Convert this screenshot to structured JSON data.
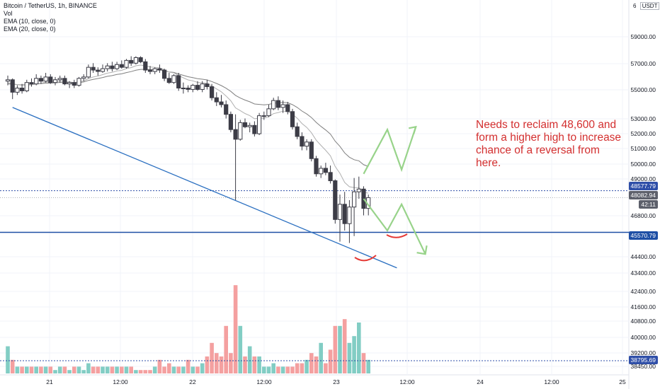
{
  "header": {
    "title": "Bitcoin / TetherUS, 1h, BINANCE",
    "indicators": [
      "Vol",
      "EMA (10, close, 0)",
      "EMA (20, close, 0)"
    ]
  },
  "price_scale": {
    "currency_box": "USDT",
    "top_label": "6",
    "tags": {
      "line1": "48577.79",
      "current": "48082.94",
      "countdown": "42:11",
      "support": "45570.79",
      "volume_line": "38795.69"
    }
  },
  "annotation": {
    "text": "Needs to reclaim 48,600 and form a higher high to increase chance of a reversal from here."
  },
  "colors": {
    "up_volume": "#82cdc4",
    "down_volume": "#f4a0a0",
    "candle": "#3c3c46",
    "trendline": "#2a6fc0",
    "support": "#1e4fa5",
    "dotted": "#2f4fa8",
    "ema10": "#b0b0b0",
    "ema20": "#808080",
    "path": "#98d38a",
    "smile": "#e53935",
    "note": "#d32f2f"
  },
  "chart_data": {
    "type": "candlestick",
    "title": "Bitcoin / TetherUS, 1h, BINANCE",
    "y_ticks": [
      59000,
      57000,
      55000,
      53000,
      52000,
      51000,
      50000,
      49000,
      46800,
      44400,
      43400,
      42400,
      41600,
      40800,
      40000,
      39200,
      38450
    ],
    "x_ticks": [
      "21",
      "12:00",
      "22",
      "12:00",
      "23",
      "12:00",
      "24",
      "12:00",
      "25"
    ],
    "candles": [
      {
        "o": 56500,
        "h": 56900,
        "l": 56200,
        "c": 56600
      },
      {
        "o": 56600,
        "h": 56700,
        "l": 55200,
        "c": 55700
      },
      {
        "o": 55700,
        "h": 56200,
        "l": 55500,
        "c": 56000
      },
      {
        "o": 56000,
        "h": 56300,
        "l": 55600,
        "c": 55800
      },
      {
        "o": 55800,
        "h": 56600,
        "l": 55700,
        "c": 56400
      },
      {
        "o": 56400,
        "h": 56700,
        "l": 56100,
        "c": 56300
      },
      {
        "o": 56300,
        "h": 57000,
        "l": 56200,
        "c": 56700
      },
      {
        "o": 56700,
        "h": 56900,
        "l": 56300,
        "c": 56500
      },
      {
        "o": 56500,
        "h": 57100,
        "l": 56400,
        "c": 56800
      },
      {
        "o": 56800,
        "h": 57000,
        "l": 56300,
        "c": 56400
      },
      {
        "o": 56400,
        "h": 56800,
        "l": 56200,
        "c": 56600
      },
      {
        "o": 56600,
        "h": 56900,
        "l": 56400,
        "c": 56700
      },
      {
        "o": 56700,
        "h": 56900,
        "l": 56200,
        "c": 56300
      },
      {
        "o": 56300,
        "h": 56500,
        "l": 56000,
        "c": 56400
      },
      {
        "o": 56400,
        "h": 56600,
        "l": 56000,
        "c": 56200
      },
      {
        "o": 56200,
        "h": 56800,
        "l": 56100,
        "c": 56700
      },
      {
        "o": 56700,
        "h": 57000,
        "l": 56500,
        "c": 56800
      },
      {
        "o": 56800,
        "h": 57700,
        "l": 56700,
        "c": 57500
      },
      {
        "o": 57500,
        "h": 57800,
        "l": 57100,
        "c": 57300
      },
      {
        "o": 57300,
        "h": 57500,
        "l": 56900,
        "c": 57200
      },
      {
        "o": 57200,
        "h": 57700,
        "l": 57100,
        "c": 57400
      },
      {
        "o": 57400,
        "h": 57800,
        "l": 57200,
        "c": 57600
      },
      {
        "o": 57600,
        "h": 57900,
        "l": 57200,
        "c": 57400
      },
      {
        "o": 57400,
        "h": 57900,
        "l": 57300,
        "c": 57700
      },
      {
        "o": 57700,
        "h": 58000,
        "l": 57400,
        "c": 57500
      },
      {
        "o": 57500,
        "h": 58100,
        "l": 57400,
        "c": 58000
      },
      {
        "o": 58000,
        "h": 58300,
        "l": 57600,
        "c": 57800
      },
      {
        "o": 57800,
        "h": 58300,
        "l": 57700,
        "c": 58200
      },
      {
        "o": 58200,
        "h": 58300,
        "l": 57800,
        "c": 57900
      },
      {
        "o": 57900,
        "h": 58100,
        "l": 57100,
        "c": 57300
      },
      {
        "o": 57300,
        "h": 57600,
        "l": 57000,
        "c": 57200
      },
      {
        "o": 57200,
        "h": 57500,
        "l": 57000,
        "c": 57400
      },
      {
        "o": 57400,
        "h": 57700,
        "l": 57100,
        "c": 57300
      },
      {
        "o": 57300,
        "h": 57400,
        "l": 56500,
        "c": 56700
      },
      {
        "o": 56700,
        "h": 57100,
        "l": 56300,
        "c": 56400
      },
      {
        "o": 56400,
        "h": 57000,
        "l": 56300,
        "c": 56900
      },
      {
        "o": 56900,
        "h": 57100,
        "l": 55800,
        "c": 56000
      },
      {
        "o": 56000,
        "h": 56400,
        "l": 55600,
        "c": 56000
      },
      {
        "o": 56000,
        "h": 56200,
        "l": 55700,
        "c": 55900
      },
      {
        "o": 55900,
        "h": 56300,
        "l": 55700,
        "c": 56200
      },
      {
        "o": 56200,
        "h": 56500,
        "l": 55800,
        "c": 55900
      },
      {
        "o": 55900,
        "h": 56500,
        "l": 55700,
        "c": 56300
      },
      {
        "o": 56300,
        "h": 56600,
        "l": 55900,
        "c": 56100
      },
      {
        "o": 56100,
        "h": 56300,
        "l": 55100,
        "c": 55300
      },
      {
        "o": 55300,
        "h": 55700,
        "l": 54700,
        "c": 55000
      },
      {
        "o": 55000,
        "h": 55500,
        "l": 54600,
        "c": 54800
      },
      {
        "o": 54800,
        "h": 55100,
        "l": 53800,
        "c": 54100
      },
      {
        "o": 54100,
        "h": 54300,
        "l": 52800,
        "c": 53000
      },
      {
        "o": 53000,
        "h": 54100,
        "l": 47900,
        "c": 52300
      },
      {
        "o": 52300,
        "h": 53700,
        "l": 52200,
        "c": 53500
      },
      {
        "o": 53500,
        "h": 53800,
        "l": 53100,
        "c": 53200
      },
      {
        "o": 53200,
        "h": 53500,
        "l": 52800,
        "c": 53300
      },
      {
        "o": 53300,
        "h": 53600,
        "l": 52500,
        "c": 52700
      },
      {
        "o": 52700,
        "h": 54200,
        "l": 52600,
        "c": 54000
      },
      {
        "o": 54000,
        "h": 54300,
        "l": 53700,
        "c": 54000
      },
      {
        "o": 54000,
        "h": 54800,
        "l": 53900,
        "c": 54500
      },
      {
        "o": 54500,
        "h": 55300,
        "l": 54400,
        "c": 55100
      },
      {
        "o": 55100,
        "h": 55400,
        "l": 54400,
        "c": 54600
      },
      {
        "o": 54600,
        "h": 55100,
        "l": 54200,
        "c": 54800
      },
      {
        "o": 54800,
        "h": 55000,
        "l": 54100,
        "c": 54300
      },
      {
        "o": 54300,
        "h": 54500,
        "l": 53000,
        "c": 53200
      },
      {
        "o": 53200,
        "h": 53500,
        "l": 52300,
        "c": 52500
      },
      {
        "o": 52500,
        "h": 52800,
        "l": 51500,
        "c": 51800
      },
      {
        "o": 51800,
        "h": 52300,
        "l": 51500,
        "c": 52100
      },
      {
        "o": 52100,
        "h": 52300,
        "l": 50700,
        "c": 50900
      },
      {
        "o": 50900,
        "h": 51100,
        "l": 49600,
        "c": 49800
      },
      {
        "o": 49800,
        "h": 50400,
        "l": 49500,
        "c": 50200
      },
      {
        "o": 50200,
        "h": 50600,
        "l": 49700,
        "c": 49900
      },
      {
        "o": 49900,
        "h": 50400,
        "l": 49100,
        "c": 49300
      },
      {
        "o": 49300,
        "h": 49400,
        "l": 46200,
        "c": 46500
      },
      {
        "o": 46500,
        "h": 48300,
        "l": 44900,
        "c": 47600
      },
      {
        "o": 47600,
        "h": 48500,
        "l": 45700,
        "c": 46200
      },
      {
        "o": 46200,
        "h": 47900,
        "l": 44800,
        "c": 47400
      },
      {
        "o": 47400,
        "h": 49500,
        "l": 45300,
        "c": 48500
      },
      {
        "o": 48500,
        "h": 49600,
        "l": 48000,
        "c": 48700
      },
      {
        "o": 48700,
        "h": 48900,
        "l": 46800,
        "c": 47300
      },
      {
        "o": 47300,
        "h": 48300,
        "l": 46800,
        "c": 48080
      }
    ],
    "volume": {
      "unit_note": "relative bar heights",
      "values": [
        8,
        4,
        2,
        2,
        2,
        2,
        2,
        2,
        2,
        2,
        1,
        2,
        2,
        1,
        2,
        2,
        1,
        3,
        2,
        2,
        2,
        2,
        2,
        2,
        2,
        2,
        2,
        1,
        1,
        1,
        1,
        2,
        4,
        2,
        3,
        2,
        2,
        2,
        4,
        2,
        2,
        3,
        5,
        9,
        6,
        5,
        14,
        6,
        26,
        14,
        5,
        8,
        5,
        5,
        2,
        2,
        3,
        2,
        2,
        2,
        2,
        3,
        3,
        4,
        6,
        5,
        9,
        3,
        7,
        14,
        14,
        16,
        9,
        11,
        15,
        6,
        4
      ]
    },
    "ema10": [
      56400,
      56300,
      56250,
      56200,
      56220,
      56230,
      56310,
      56350,
      56430,
      56430,
      56460,
      56500,
      56460,
      56440,
      56400,
      56450,
      56510,
      56690,
      56800,
      56870,
      56970,
      57080,
      57140,
      57240,
      57280,
      57410,
      57480,
      57610,
      57660,
      57600,
      57530,
      57500,
      57460,
      57320,
      57150,
      57100,
      56900,
      56740,
      56590,
      56520,
      56410,
      56390,
      56340,
      56150,
      55940,
      55730,
      55430,
      55080,
      54570,
      54370,
      54160,
      54010,
      53780,
      53820,
      53820,
      53940,
      54150,
      54230,
      54330,
      54320,
      54110,
      53820,
      53440,
      53160,
      52770,
      52230,
      51860,
      51500,
      51100,
      50330,
      49840,
      49180,
      48870,
      48800,
      48800,
      48480,
      48400
    ],
    "ema20": [
      56300,
      56280,
      56250,
      56230,
      56240,
      56240,
      56290,
      56320,
      56360,
      56360,
      56380,
      56410,
      56390,
      56380,
      56370,
      56400,
      56440,
      56550,
      56630,
      56690,
      56760,
      56850,
      56900,
      56980,
      57030,
      57120,
      57190,
      57290,
      57350,
      57350,
      57340,
      57340,
      57330,
      57250,
      57160,
      57130,
      57020,
      56920,
      56820,
      56750,
      56680,
      56640,
      56590,
      56470,
      56330,
      56180,
      55990,
      55760,
      55470,
      55280,
      55130,
      55010,
      54850,
      54820,
      54790,
      54820,
      54900,
      54930,
      54970,
      54940,
      54800,
      54600,
      54340,
      54130,
      53870,
      53520,
      53230,
      52970,
      52670,
      52160,
      51790,
      51310,
      51000,
      50820,
      50740,
      50460,
      50330
    ],
    "trendline": {
      "from": {
        "index": 1,
        "price": 54600
      },
      "to": {
        "index": 82,
        "price": 43000
      }
    },
    "horizontal_lines": [
      48577.79,
      48082.94,
      45570.79
    ],
    "projected_paths": [
      {
        "name": "bullish",
        "points": [
          [
            75,
            49800
          ],
          [
            80,
            53000
          ],
          [
            83,
            50100
          ],
          [
            86,
            53200
          ]
        ]
      },
      {
        "name": "bearish",
        "points": [
          [
            75,
            48000
          ],
          [
            80,
            45700
          ],
          [
            83,
            47600
          ],
          [
            88,
            44000
          ]
        ]
      }
    ]
  }
}
